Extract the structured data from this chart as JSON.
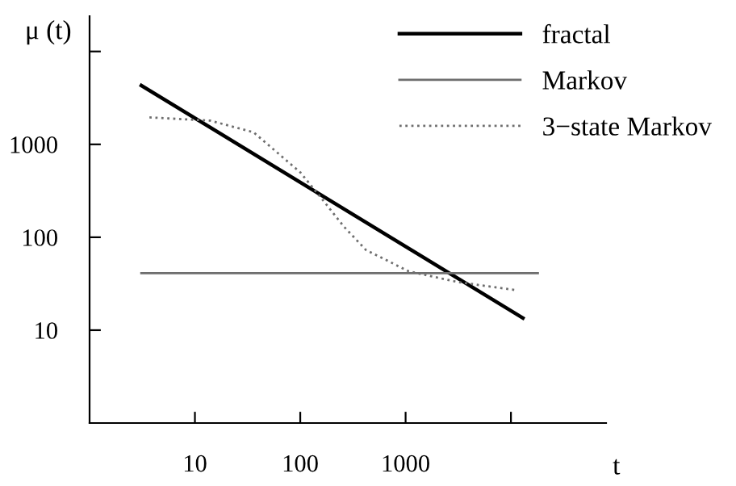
{
  "chart_data": {
    "type": "line",
    "xlabel": "t",
    "ylabel": "μ (t)",
    "log": "xy",
    "xlim": [
      1,
      80000
    ],
    "ylim": [
      1,
      24000
    ],
    "xticks": [
      10,
      100,
      1000,
      {
        "value": 10000,
        "label": null
      }
    ],
    "yticks": [
      10,
      100,
      1000,
      {
        "value": 10000,
        "label": null
      }
    ],
    "grid": false,
    "legend": "top right",
    "marker": "none",
    "series": [
      {
        "name": "fractal",
        "color": "#000000",
        "x": [
          3.1,
          13000
        ],
        "values": [
          4300,
          13.5
        ],
        "line_style": "solid"
      },
      {
        "name": "Markov",
        "color": "#6e6e6e",
        "x": [
          3.1,
          18000
        ],
        "values": [
          41,
          41
        ],
        "line_style": "solid"
      },
      {
        "name": "3−state Markov",
        "color": "#6e6e6e",
        "x": [
          3.7,
          14,
          36,
          100,
          160,
          260,
          420,
          1070,
          3100,
          11000
        ],
        "values": [
          1950,
          1800,
          1350,
          500,
          260,
          130,
          73,
          43,
          33,
          27
        ],
        "line_style": "dotted"
      }
    ]
  }
}
